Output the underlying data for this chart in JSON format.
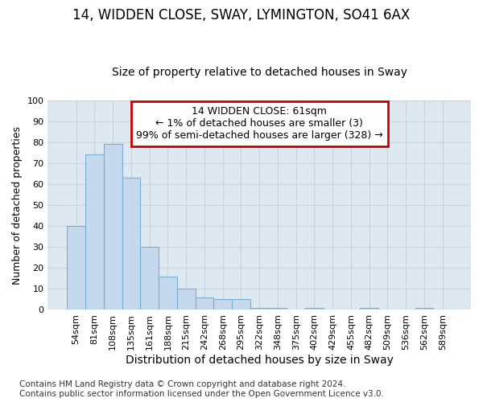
{
  "title1": "14, WIDDEN CLOSE, SWAY, LYMINGTON, SO41 6AX",
  "title2": "Size of property relative to detached houses in Sway",
  "xlabel": "Distribution of detached houses by size in Sway",
  "ylabel": "Number of detached properties",
  "categories": [
    "54sqm",
    "81sqm",
    "108sqm",
    "135sqm",
    "161sqm",
    "188sqm",
    "215sqm",
    "242sqm",
    "268sqm",
    "295sqm",
    "322sqm",
    "348sqm",
    "375sqm",
    "402sqm",
    "429sqm",
    "455sqm",
    "482sqm",
    "509sqm",
    "536sqm",
    "562sqm",
    "589sqm"
  ],
  "values": [
    40,
    74,
    79,
    63,
    30,
    16,
    10,
    6,
    5,
    5,
    1,
    1,
    0,
    1,
    0,
    0,
    1,
    0,
    0,
    1,
    0
  ],
  "bar_color": "#c5d8ee",
  "bar_edge_color": "#7aafd4",
  "annotation_box_text": "14 WIDDEN CLOSE: 61sqm\n← 1% of detached houses are smaller (3)\n99% of semi-detached houses are larger (328) →",
  "annotation_box_color": "#ffffff",
  "annotation_box_edge_color": "#cc0000",
  "grid_color": "#c5d5e5",
  "bg_color": "#dde8f0",
  "ylim": [
    0,
    100
  ],
  "yticks": [
    0,
    10,
    20,
    30,
    40,
    50,
    60,
    70,
    80,
    90,
    100
  ],
  "title1_fontsize": 12,
  "title2_fontsize": 10,
  "xlabel_fontsize": 10,
  "ylabel_fontsize": 9,
  "tick_fontsize": 8,
  "annot_fontsize": 9,
  "footnote_fontsize": 7.5,
  "footnote": "Contains HM Land Registry data © Crown copyright and database right 2024.\nContains public sector information licensed under the Open Government Licence v3.0."
}
